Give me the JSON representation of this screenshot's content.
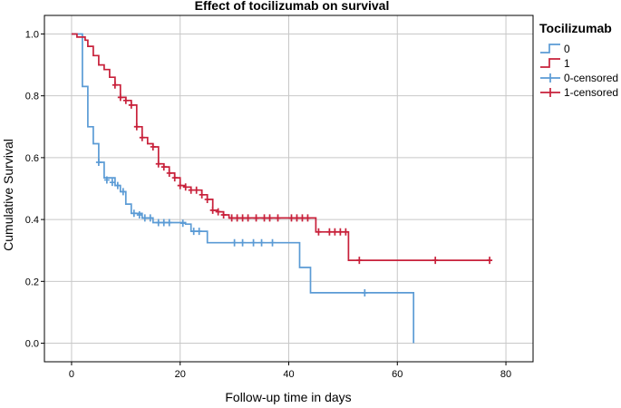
{
  "chart_data": {
    "type": "line",
    "title": "Effect of tocilizumab on survival",
    "xlabel": "Follow-up time in days",
    "ylabel": "Cumulative Survival",
    "xlim": [
      -5,
      85
    ],
    "ylim": [
      -0.06,
      1.06
    ],
    "x_ticks": [
      0,
      20,
      40,
      60,
      80
    ],
    "y_ticks": [
      0.0,
      0.2,
      0.4,
      0.6,
      0.8,
      1.0
    ],
    "x_tick_labels": [
      "0",
      "20",
      "40",
      "60",
      "80"
    ],
    "y_tick_labels": [
      "0.0",
      "0.2",
      "0.4",
      "0.6",
      "0.8",
      "1.0"
    ],
    "grid": true,
    "legend": {
      "title": "Tocilizumab",
      "position": "right",
      "entries": [
        {
          "label": "0",
          "series": 0,
          "kind": "line"
        },
        {
          "label": "1",
          "series": 1,
          "kind": "line"
        },
        {
          "label": "0-censored",
          "series": 0,
          "kind": "censored"
        },
        {
          "label": "1-censored",
          "series": 1,
          "kind": "censored"
        }
      ]
    },
    "series": [
      {
        "name": "0",
        "color": "#5b9bd5",
        "steps": [
          [
            0,
            1.0
          ],
          [
            2,
            0.83
          ],
          [
            3,
            0.7
          ],
          [
            4,
            0.645
          ],
          [
            5,
            0.585
          ],
          [
            6,
            0.535
          ],
          [
            8,
            0.51
          ],
          [
            9,
            0.49
          ],
          [
            10,
            0.45
          ],
          [
            11,
            0.42
          ],
          [
            13,
            0.405
          ],
          [
            15,
            0.39
          ],
          [
            21,
            0.385
          ],
          [
            22,
            0.362
          ],
          [
            25,
            0.325
          ],
          [
            42,
            0.245
          ],
          [
            44,
            0.163
          ],
          [
            63,
            0.0
          ]
        ],
        "censored": [
          [
            5,
            0.585
          ],
          [
            6.5,
            0.528
          ],
          [
            7.5,
            0.52
          ],
          [
            8.5,
            0.51
          ],
          [
            9.5,
            0.49
          ],
          [
            11.5,
            0.42
          ],
          [
            12.5,
            0.415
          ],
          [
            13.5,
            0.405
          ],
          [
            14.5,
            0.405
          ],
          [
            16,
            0.39
          ],
          [
            17,
            0.39
          ],
          [
            18,
            0.39
          ],
          [
            20.5,
            0.388
          ],
          [
            22.5,
            0.362
          ],
          [
            23.5,
            0.362
          ],
          [
            30,
            0.325
          ],
          [
            31.5,
            0.325
          ],
          [
            33.5,
            0.325
          ],
          [
            35,
            0.325
          ],
          [
            37,
            0.325
          ],
          [
            54,
            0.163
          ]
        ]
      },
      {
        "name": "1",
        "color": "#c8203a",
        "steps": [
          [
            0,
            1.0
          ],
          [
            1,
            0.99
          ],
          [
            2.5,
            0.98
          ],
          [
            3,
            0.96
          ],
          [
            4,
            0.93
          ],
          [
            5,
            0.9
          ],
          [
            6,
            0.885
          ],
          [
            7,
            0.86
          ],
          [
            8,
            0.835
          ],
          [
            9,
            0.795
          ],
          [
            10,
            0.785
          ],
          [
            11,
            0.77
          ],
          [
            12,
            0.7
          ],
          [
            13,
            0.665
          ],
          [
            14,
            0.645
          ],
          [
            15,
            0.635
          ],
          [
            16,
            0.58
          ],
          [
            17,
            0.57
          ],
          [
            18,
            0.55
          ],
          [
            19,
            0.535
          ],
          [
            20,
            0.51
          ],
          [
            21,
            0.505
          ],
          [
            22,
            0.495
          ],
          [
            24,
            0.48
          ],
          [
            25,
            0.465
          ],
          [
            26,
            0.43
          ],
          [
            27,
            0.425
          ],
          [
            28,
            0.415
          ],
          [
            29,
            0.405
          ],
          [
            45,
            0.36
          ],
          [
            51,
            0.268
          ]
        ],
        "censored": [
          [
            8,
            0.835
          ],
          [
            9,
            0.795
          ],
          [
            10,
            0.785
          ],
          [
            11,
            0.77
          ],
          [
            12,
            0.7
          ],
          [
            13,
            0.665
          ],
          [
            15,
            0.635
          ],
          [
            16,
            0.58
          ],
          [
            17,
            0.57
          ],
          [
            18,
            0.55
          ],
          [
            19,
            0.535
          ],
          [
            20,
            0.51
          ],
          [
            21,
            0.505
          ],
          [
            22,
            0.495
          ],
          [
            23,
            0.495
          ],
          [
            24,
            0.48
          ],
          [
            25,
            0.465
          ],
          [
            26,
            0.43
          ],
          [
            27,
            0.425
          ],
          [
            28,
            0.415
          ],
          [
            29.5,
            0.405
          ],
          [
            30.5,
            0.405
          ],
          [
            31.5,
            0.405
          ],
          [
            32.5,
            0.405
          ],
          [
            34,
            0.405
          ],
          [
            35.5,
            0.405
          ],
          [
            36.5,
            0.405
          ],
          [
            38,
            0.405
          ],
          [
            40.5,
            0.405
          ],
          [
            41.5,
            0.405
          ],
          [
            42.5,
            0.405
          ],
          [
            43.5,
            0.405
          ],
          [
            45.5,
            0.36
          ],
          [
            47.5,
            0.36
          ],
          [
            48.5,
            0.36
          ],
          [
            49.5,
            0.36
          ],
          [
            50.5,
            0.36
          ],
          [
            53,
            0.268
          ],
          [
            67,
            0.268
          ],
          [
            77,
            0.268
          ]
        ]
      }
    ]
  }
}
